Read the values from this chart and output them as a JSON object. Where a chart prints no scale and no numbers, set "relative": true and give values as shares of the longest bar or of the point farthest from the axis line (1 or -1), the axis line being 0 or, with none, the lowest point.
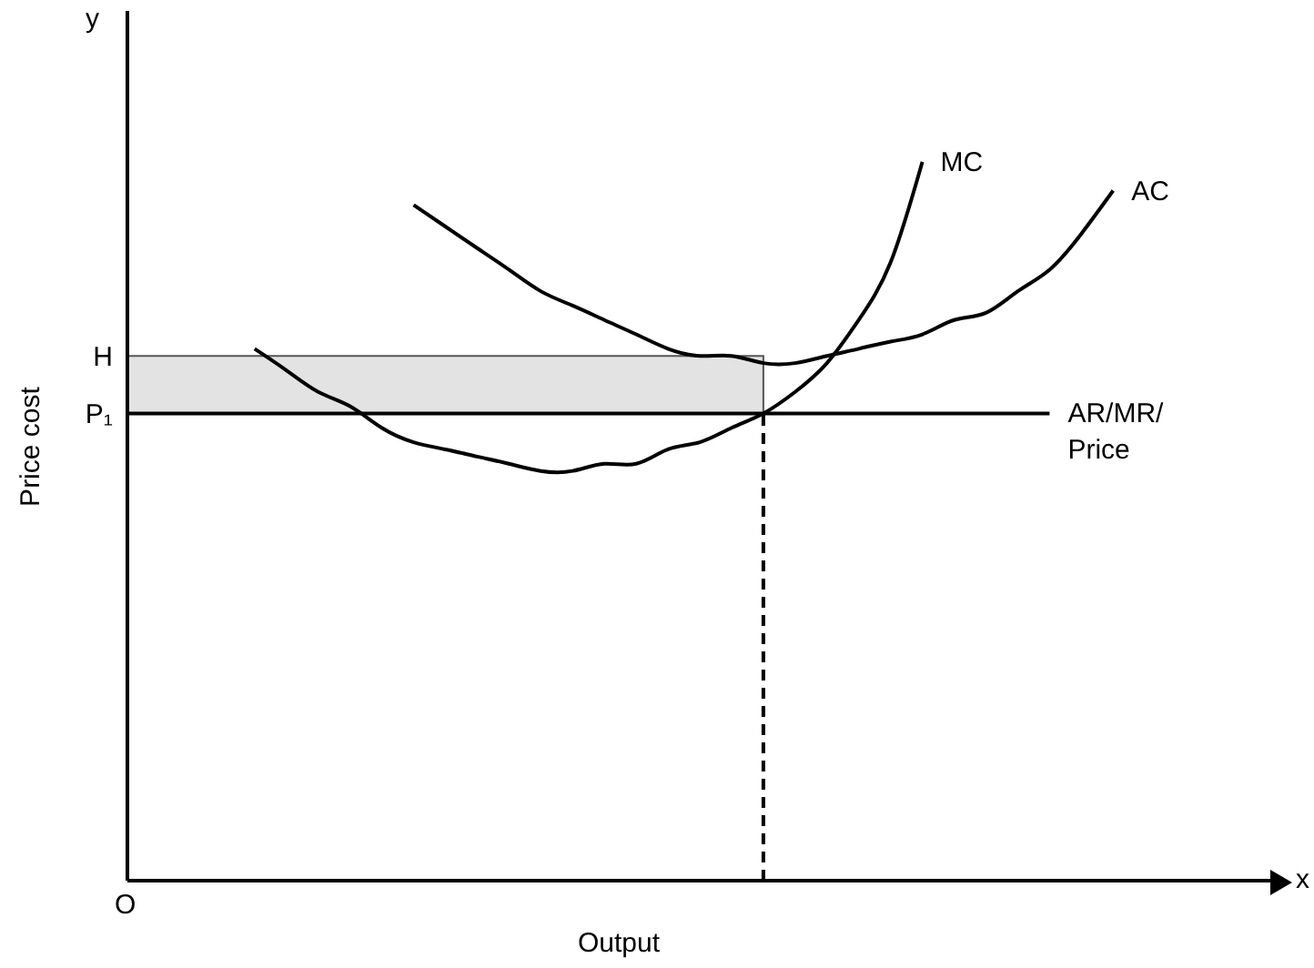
{
  "chart_data": {
    "type": "line",
    "relative": true,
    "xlabel": "Output",
    "ylabel": "Price cost",
    "categories": [
      null,
      null,
      null,
      null,
      null,
      null,
      null,
      null,
      null,
      null,
      null,
      null,
      null,
      null,
      null,
      null,
      null,
      null,
      null,
      null,
      null,
      null,
      null,
      null,
      null,
      null,
      null,
      null,
      null,
      null,
      null,
      null,
      null,
      null,
      null,
      null,
      null
    ],
    "series": [
      {
        "name": "MC",
        "color": "#000000",
        "values": [
          null,
          null,
          null,
          null,
          0.74,
          0.71,
          0.68,
          0.66,
          0.63,
          0.61,
          0.6,
          0.59,
          0.58,
          0.57,
          0.57,
          0.58,
          0.58,
          0.6,
          0.61,
          0.63,
          0.65,
          0.68,
          0.72,
          0.78,
          0.86,
          1,
          null,
          null,
          null,
          null,
          null,
          null,
          null,
          null,
          null,
          null,
          null
        ]
      },
      {
        "name": "AC",
        "color": "#000000",
        "values": [
          null,
          null,
          null,
          null,
          null,
          null,
          null,
          null,
          null,
          0.94,
          0.91,
          0.88,
          0.85,
          0.82,
          0.8,
          0.78,
          0.76,
          0.74,
          0.73,
          0.73,
          0.72,
          0.72,
          0.73,
          0.74,
          0.75,
          0.76,
          0.78,
          0.79,
          0.82,
          0.85,
          0.9,
          0.96,
          null,
          null,
          null,
          null,
          null
        ]
      },
      {
        "name": "AR/MR/\nPrice",
        "color": "#000000",
        "values": [
          0.65,
          0.65,
          0.65,
          0.65,
          0.65,
          0.65,
          0.65,
          0.65,
          0.65,
          0.65,
          0.65,
          0.65,
          0.65,
          0.65,
          0.65,
          0.65,
          0.65,
          0.65,
          0.65,
          0.65,
          0.65,
          0.65,
          0.65,
          0.65,
          0.65,
          0.65,
          0.65,
          0.65,
          0.65,
          0.65,
          null,
          null,
          null,
          null,
          null,
          null,
          null
        ]
      }
    ],
    "bands": [
      {
        "axis": "y",
        "from": 0.65,
        "to": 0.73,
        "color": "#e3e3e3"
      }
    ],
    "annotations": [
      "H",
      "P₁",
      "O",
      "x",
      "y"
    ]
  }
}
